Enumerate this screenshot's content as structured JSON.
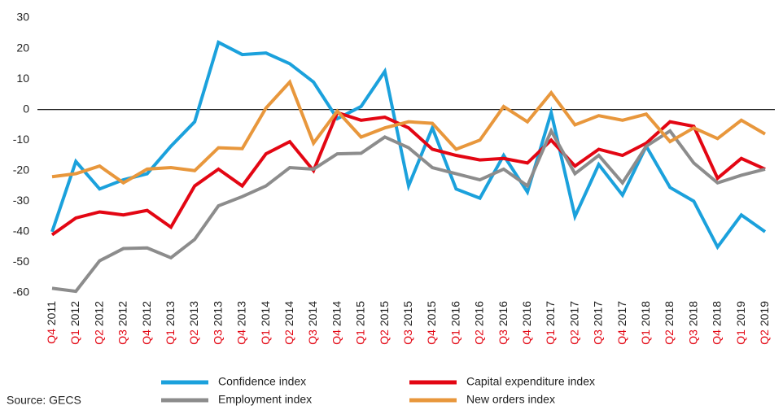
{
  "chart_data": {
    "type": "line",
    "source": "Source: GECS",
    "categories": [
      "Q4 2011",
      "Q1 2012",
      "Q2 2012",
      "Q3 2012",
      "Q4 2012",
      "Q1 2013",
      "Q2 2013",
      "Q3 2013",
      "Q4 2013",
      "Q1 2014",
      "Q2 2014",
      "Q3 2014",
      "Q4 2014",
      "Q1 2015",
      "Q2 2015",
      "Q3 2015",
      "Q4 2015",
      "Q1 2016",
      "Q2 2016",
      "Q3 2016",
      "Q4 2016",
      "Q1 2017",
      "Q2 2017",
      "Q3 2017",
      "Q4 2017",
      "Q1 2018",
      "Q2 2018",
      "Q3 2018",
      "Q4 2018",
      "Q1 2019",
      "Q2 2019"
    ],
    "series": [
      {
        "name": "Confidence index",
        "color": "#1ba1dc",
        "values": [
          -40,
          -17,
          -26,
          -23,
          -21,
          -12,
          -4,
          22,
          18,
          18.5,
          15,
          9,
          -3,
          1,
          12.5,
          -25,
          -6,
          -26,
          -29,
          -15,
          -27,
          -1,
          -35,
          -18,
          -28,
          -12,
          -25.5,
          -30,
          -45,
          -34.5,
          -40
        ]
      },
      {
        "name": "Capital expenditure index",
        "color": "#e30613",
        "values": [
          -41,
          -35.5,
          -33.5,
          -34.5,
          -33,
          -38.5,
          -25,
          -19.5,
          -25,
          -14.5,
          -10.5,
          -20,
          -1,
          -3.5,
          -2.5,
          -6,
          -13,
          -15,
          -16.5,
          -16,
          -17.5,
          -10,
          -18.5,
          -13,
          -15,
          -11,
          -4,
          -5.5,
          -22.5,
          -16,
          -19.5
        ]
      },
      {
        "name": "Employment index",
        "color": "#8c8c8c",
        "values": [
          -58.5,
          -59.5,
          -49.5,
          -45.5,
          -45.3,
          -48.5,
          -42.5,
          -31.5,
          -28.5,
          -25,
          -19,
          -19.5,
          -14.5,
          -14.3,
          -9,
          -12.5,
          -19,
          -21,
          -23,
          -19.5,
          -25,
          -7,
          -21,
          -15,
          -24,
          -12,
          -7,
          -17.5,
          -24,
          -21.5,
          -19.5
        ]
      },
      {
        "name": "New orders index",
        "color": "#e8973c",
        "values": [
          -22,
          -21,
          -18.5,
          -24,
          -19.5,
          -19,
          -20,
          -12.5,
          -12.8,
          0.5,
          9,
          -11,
          -0.5,
          -9,
          -6,
          -4,
          -4.5,
          -13,
          -10,
          1,
          -4,
          5.5,
          -5,
          -2,
          -3.5,
          -1.5,
          -10.5,
          -6,
          -9.5,
          -3.5,
          -8
        ]
      }
    ],
    "ylim": [
      -60,
      30
    ],
    "yticks": [
      -60,
      -50,
      -40,
      -30,
      -20,
      -10,
      0,
      10,
      20,
      30
    ],
    "zero_line": true,
    "quarter_color": "#e30613"
  }
}
